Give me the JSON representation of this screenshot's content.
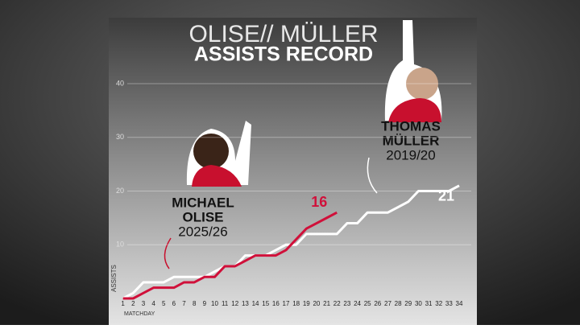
{
  "chart_data": {
    "type": "line",
    "title": "OLISE// MÜLLER",
    "subtitle": "ASSISTS RECORD",
    "x_label": "MATCHDAY",
    "y_label": "ASSISTS",
    "annotations": [
      "MICHAEL",
      "OLISE",
      "2025/26",
      "THOMAS",
      "MÜLLER",
      "2019/20"
    ],
    "xlim": [
      0,
      34
    ],
    "xticks": [
      1,
      2,
      3,
      4,
      5,
      6,
      7,
      8,
      9,
      10,
      11,
      12,
      13,
      14,
      15,
      16,
      17,
      18,
      19,
      20,
      21,
      22,
      23,
      24,
      25,
      26,
      27,
      28,
      29,
      30,
      31,
      32,
      33,
      34
    ],
    "ylim": [
      0,
      40
    ],
    "yticks": [
      10,
      20,
      30,
      40
    ],
    "grid": true,
    "series": [
      {
        "name": "Thomas Müller",
        "color": "#ffffff",
        "x": [
          1,
          2,
          3,
          4,
          5,
          6,
          7,
          8,
          9,
          10,
          11,
          12,
          13,
          14,
          15,
          16,
          17,
          18,
          19,
          20,
          21,
          22,
          23,
          24,
          25,
          26,
          27,
          28,
          29,
          30,
          31,
          32,
          33,
          34
        ],
        "values": [
          0,
          1,
          3,
          3,
          3,
          4,
          4,
          4,
          4,
          5,
          6,
          6,
          8,
          8,
          8,
          9,
          10,
          10,
          12,
          12,
          12,
          12,
          14,
          14,
          16,
          16,
          16,
          17,
          18,
          20,
          20,
          20,
          20,
          21
        ]
      },
      {
        "name": "Michael Olise",
        "color": "#d0103a",
        "x": [
          1,
          2,
          3,
          4,
          5,
          6,
          7,
          8,
          9,
          10,
          11,
          12,
          13,
          14,
          15,
          16,
          17,
          18,
          19,
          20,
          21,
          22
        ],
        "values": [
          0,
          0,
          1,
          2,
          2,
          2,
          3,
          3,
          4,
          4,
          6,
          6,
          7,
          8,
          8,
          8,
          9,
          11,
          13,
          14,
          15,
          16
        ]
      }
    ]
  }
}
